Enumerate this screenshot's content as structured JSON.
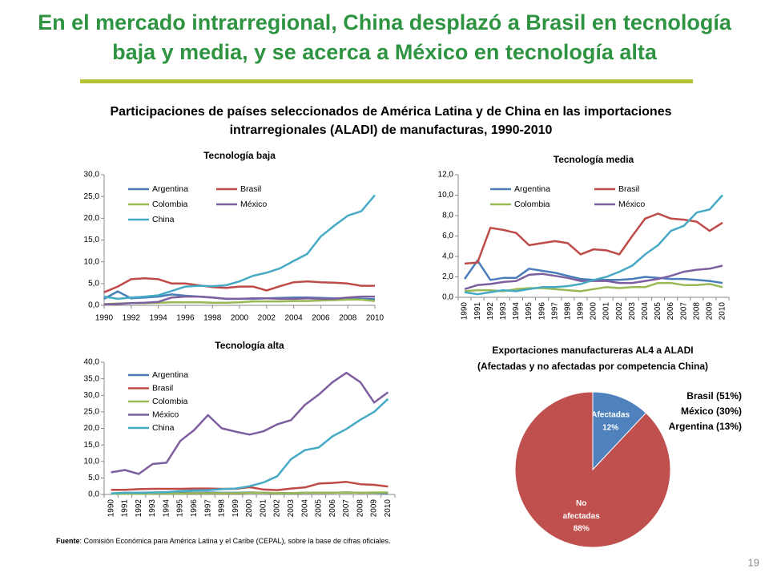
{
  "title": [
    "En el mercado intrarregional, China desplazó a Brasil en tecnología",
    "baja y media, y se acerca a México en tecnología alta"
  ],
  "subtitle": [
    "Participaciones de países seleccionados de América Latina y de China en las importaciones",
    "intrarregionales (ALADI) de manufacturas,   1990-2010"
  ],
  "footnote": {
    "label": "Fuente",
    "text": ": Comisión Económica para América Latina y el Caribe (CEPAL), sobre la base de cifras oficiales."
  },
  "page_number": "19",
  "chart_data": [
    {
      "type": "line",
      "title": "Tecnología baja",
      "x": [
        1990,
        1991,
        1992,
        1993,
        1994,
        1995,
        1996,
        1997,
        1998,
        1999,
        2000,
        2001,
        2002,
        2003,
        2004,
        2005,
        2006,
        2007,
        2008,
        2009,
        2010
      ],
      "xlim": [
        1990,
        2010
      ],
      "xticks": [
        1990,
        1992,
        1994,
        1996,
        1998,
        2000,
        2002,
        2004,
        2006,
        2008,
        2010
      ],
      "ylim": [
        0,
        30
      ],
      "yticks": [
        {
          "value": 0,
          "label": "0,0"
        },
        {
          "value": 5,
          "label": "5,0"
        },
        {
          "value": 10,
          "label": "10,0"
        },
        {
          "value": 15,
          "label": "15,0"
        },
        {
          "value": 20,
          "label": "20,0"
        },
        {
          "value": 25,
          "label": "25,0"
        },
        {
          "value": 30,
          "label": "30,0"
        }
      ],
      "series": [
        {
          "name": "Argentina",
          "color": "#4a7ebb",
          "values": [
            1.5,
            3.2,
            1.6,
            1.8,
            2.0,
            2.5,
            2.2,
            2.0,
            1.8,
            1.5,
            1.5,
            1.5,
            1.6,
            1.7,
            1.8,
            1.8,
            1.7,
            1.6,
            1.6,
            1.5,
            1.4
          ]
        },
        {
          "name": "Brasil",
          "color": "#be4b48",
          "values": [
            3.0,
            4.3,
            6.0,
            6.2,
            6.0,
            5.0,
            5.0,
            4.6,
            4.2,
            4.0,
            4.3,
            4.3,
            3.4,
            4.4,
            5.3,
            5.5,
            5.3,
            5.2,
            5.0,
            4.5,
            4.5
          ]
        },
        {
          "name": "Colombia",
          "color": "#98b954",
          "values": [
            0.3,
            0.4,
            0.5,
            0.5,
            0.6,
            0.7,
            0.7,
            0.7,
            0.6,
            0.6,
            0.7,
            0.9,
            0.9,
            0.9,
            1.0,
            1.0,
            1.1,
            1.2,
            1.3,
            1.3,
            1.0
          ]
        },
        {
          "name": "México",
          "color": "#7d5fa0",
          "values": [
            0.2,
            0.3,
            0.5,
            0.6,
            0.8,
            1.8,
            2.0,
            2.0,
            1.8,
            1.5,
            1.5,
            1.6,
            1.6,
            1.5,
            1.5,
            1.6,
            1.5,
            1.5,
            1.8,
            2.0,
            2.0
          ]
        },
        {
          "name": "China",
          "color": "#46aac5",
          "values": [
            2.0,
            1.5,
            1.8,
            2.0,
            2.3,
            3.3,
            4.3,
            4.5,
            4.4,
            4.6,
            5.5,
            6.8,
            7.5,
            8.5,
            10.2,
            11.8,
            15.8,
            18.3,
            20.6,
            21.6,
            25.3
          ]
        }
      ]
    },
    {
      "type": "line",
      "title": "Tecnología media",
      "categories": [
        "1990",
        "1991",
        "1992",
        "1993",
        "1994",
        "1995",
        "1996",
        "1997",
        "1998",
        "1999",
        "2000",
        "2001",
        "2002",
        "2003",
        "2004",
        "2005",
        "2006",
        "2007",
        "2008",
        "2009",
        "2010"
      ],
      "ylim": [
        0,
        12
      ],
      "yticks": [
        {
          "value": 0,
          "label": "0,0"
        },
        {
          "value": 2,
          "label": "2,0"
        },
        {
          "value": 4,
          "label": "4,0"
        },
        {
          "value": 6,
          "label": "6,0"
        },
        {
          "value": 8,
          "label": "8,0"
        },
        {
          "value": 10,
          "label": "10,0"
        },
        {
          "value": 12,
          "label": "12,0"
        }
      ],
      "series": [
        {
          "name": "Argentina",
          "color": "#4a7ebb",
          "values": [
            1.8,
            3.6,
            1.7,
            1.9,
            1.9,
            2.8,
            2.6,
            2.4,
            2.1,
            1.8,
            1.7,
            1.7,
            1.7,
            1.8,
            2.0,
            1.9,
            1.8,
            1.8,
            1.7,
            1.6,
            1.4
          ]
        },
        {
          "name": "Brasil",
          "color": "#be4b48",
          "values": [
            3.3,
            3.4,
            6.8,
            6.6,
            6.3,
            5.1,
            5.3,
            5.5,
            5.3,
            4.2,
            4.7,
            4.6,
            4.2,
            6.0,
            7.7,
            8.2,
            7.7,
            7.6,
            7.4,
            6.5,
            7.3
          ]
        },
        {
          "name": "Colombia",
          "color": "#98b954",
          "values": [
            0.6,
            0.7,
            0.7,
            0.6,
            0.8,
            0.9,
            0.9,
            0.8,
            0.7,
            0.6,
            0.8,
            1.0,
            0.9,
            1.0,
            1.0,
            1.4,
            1.4,
            1.2,
            1.2,
            1.3,
            1.0
          ]
        },
        {
          "name": "México",
          "color": "#7d5fa0",
          "values": [
            0.8,
            1.2,
            1.3,
            1.5,
            1.6,
            2.2,
            2.3,
            2.1,
            1.9,
            1.6,
            1.6,
            1.6,
            1.4,
            1.4,
            1.6,
            1.8,
            2.1,
            2.5,
            2.7,
            2.8,
            3.1
          ]
        },
        {
          "color": "#46aac5",
          "values": [
            0.5,
            0.3,
            0.5,
            0.7,
            0.6,
            0.8,
            1.0,
            1.0,
            1.1,
            1.3,
            1.7,
            2.0,
            2.5,
            3.1,
            4.2,
            5.1,
            6.5,
            7.0,
            8.3,
            8.6,
            10.0
          ]
        }
      ]
    },
    {
      "type": "line",
      "title": "Tecnología alta",
      "categories": [
        "1990",
        "1991",
        "1992",
        "1993",
        "1994",
        "1995",
        "1996",
        "1997",
        "1998",
        "1999",
        "2000",
        "2001",
        "2002",
        "2003",
        "2004",
        "2005",
        "2006",
        "2007",
        "2008",
        "2009",
        "2010"
      ],
      "ylim": [
        0,
        40
      ],
      "yticks": [
        {
          "value": 0,
          "label": "0,0"
        },
        {
          "value": 5,
          "label": "5,0"
        },
        {
          "value": 10,
          "label": "10,0"
        },
        {
          "value": 15,
          "label": "15,0"
        },
        {
          "value": 20,
          "label": "20,0"
        },
        {
          "value": 25,
          "label": "25,0"
        },
        {
          "value": 30,
          "label": "30,0"
        },
        {
          "value": 35,
          "label": "35,0"
        },
        {
          "value": 40,
          "label": "40,0"
        }
      ],
      "series": [
        {
          "name": "Argentina",
          "color": "#4a7ebb",
          "values": [
            0.3,
            0.3,
            0.4,
            0.4,
            0.4,
            0.5,
            0.5,
            0.6,
            0.5,
            0.5,
            0.6,
            0.5,
            0.4,
            0.4,
            0.5,
            0.5,
            0.5,
            0.6,
            0.5,
            0.5,
            0.4
          ]
        },
        {
          "name": "Brasil",
          "color": "#be4b48",
          "values": [
            1.4,
            1.4,
            1.6,
            1.7,
            1.7,
            1.7,
            1.8,
            1.8,
            1.7,
            1.7,
            2.2,
            1.5,
            1.3,
            1.8,
            2.1,
            3.3,
            3.5,
            3.8,
            3.1,
            2.9,
            2.4
          ]
        },
        {
          "name": "Colombia",
          "color": "#98b954",
          "values": [
            0.2,
            0.2,
            0.2,
            0.3,
            0.3,
            0.3,
            0.4,
            0.4,
            0.4,
            0.4,
            0.5,
            0.5,
            0.4,
            0.4,
            0.5,
            0.5,
            0.5,
            0.6,
            0.5,
            0.6,
            0.6
          ]
        },
        {
          "name": "México",
          "color": "#7d5fa0",
          "values": [
            6.7,
            7.4,
            6.2,
            9.2,
            9.6,
            16.2,
            19.5,
            24.0,
            20.0,
            19.0,
            18.1,
            19.1,
            21.2,
            22.5,
            27.1,
            30.2,
            34.0,
            36.8,
            34.0,
            27.8,
            30.9
          ]
        },
        {
          "name": "China",
          "color": "#46aac5",
          "values": [
            0.3,
            0.5,
            0.5,
            0.6,
            0.7,
            1.0,
            1.2,
            1.3,
            1.6,
            1.8,
            2.5,
            3.6,
            5.5,
            10.7,
            13.4,
            14.2,
            17.6,
            19.8,
            22.6,
            25.0,
            28.9
          ]
        }
      ]
    },
    {
      "type": "pie",
      "title": [
        "Exportaciones manufactureras AL4 a ALADI",
        "(Afectadas y no afectadas por competencia China)"
      ],
      "categories": [
        "Afectadas",
        "No afectadas"
      ],
      "values": [
        12,
        88
      ],
      "value_labels": [
        "12%",
        "88%"
      ],
      "colors": [
        "#4f81bd",
        "#c0504d"
      ],
      "annotations": [
        "Brasil (51%)",
        "México (30%)",
        "Argentina (13%)"
      ]
    }
  ]
}
